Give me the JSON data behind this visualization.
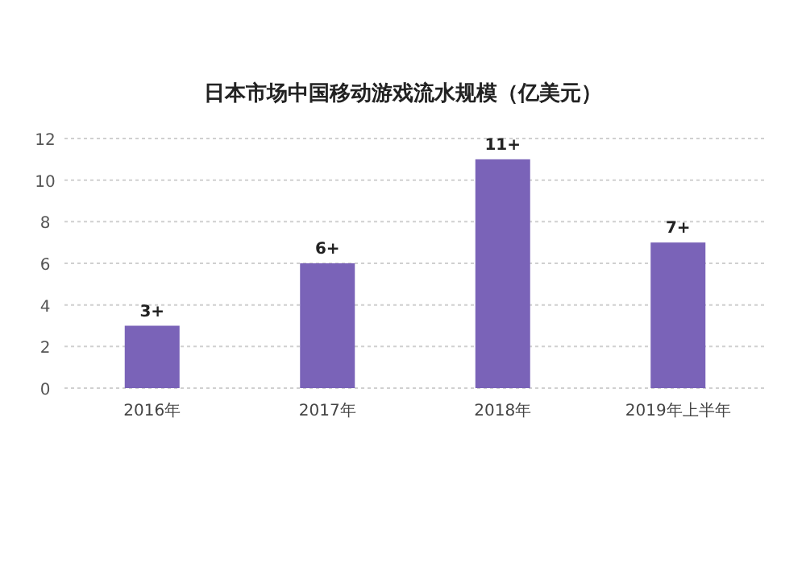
{
  "chart_data": {
    "type": "bar",
    "title": "日本市场中国移动游戏流水规模（亿美元）",
    "categories": [
      "2016年",
      "2017年",
      "2018年",
      "2019年上半年"
    ],
    "values": [
      3,
      6,
      11,
      7
    ],
    "value_labels": [
      "3+",
      "6+",
      "11+",
      "7+"
    ],
    "color": "#7a63b8",
    "ylim": [
      0,
      12
    ],
    "yticks": [
      0,
      2,
      4,
      6,
      8,
      10,
      12
    ],
    "grid": "y"
  }
}
